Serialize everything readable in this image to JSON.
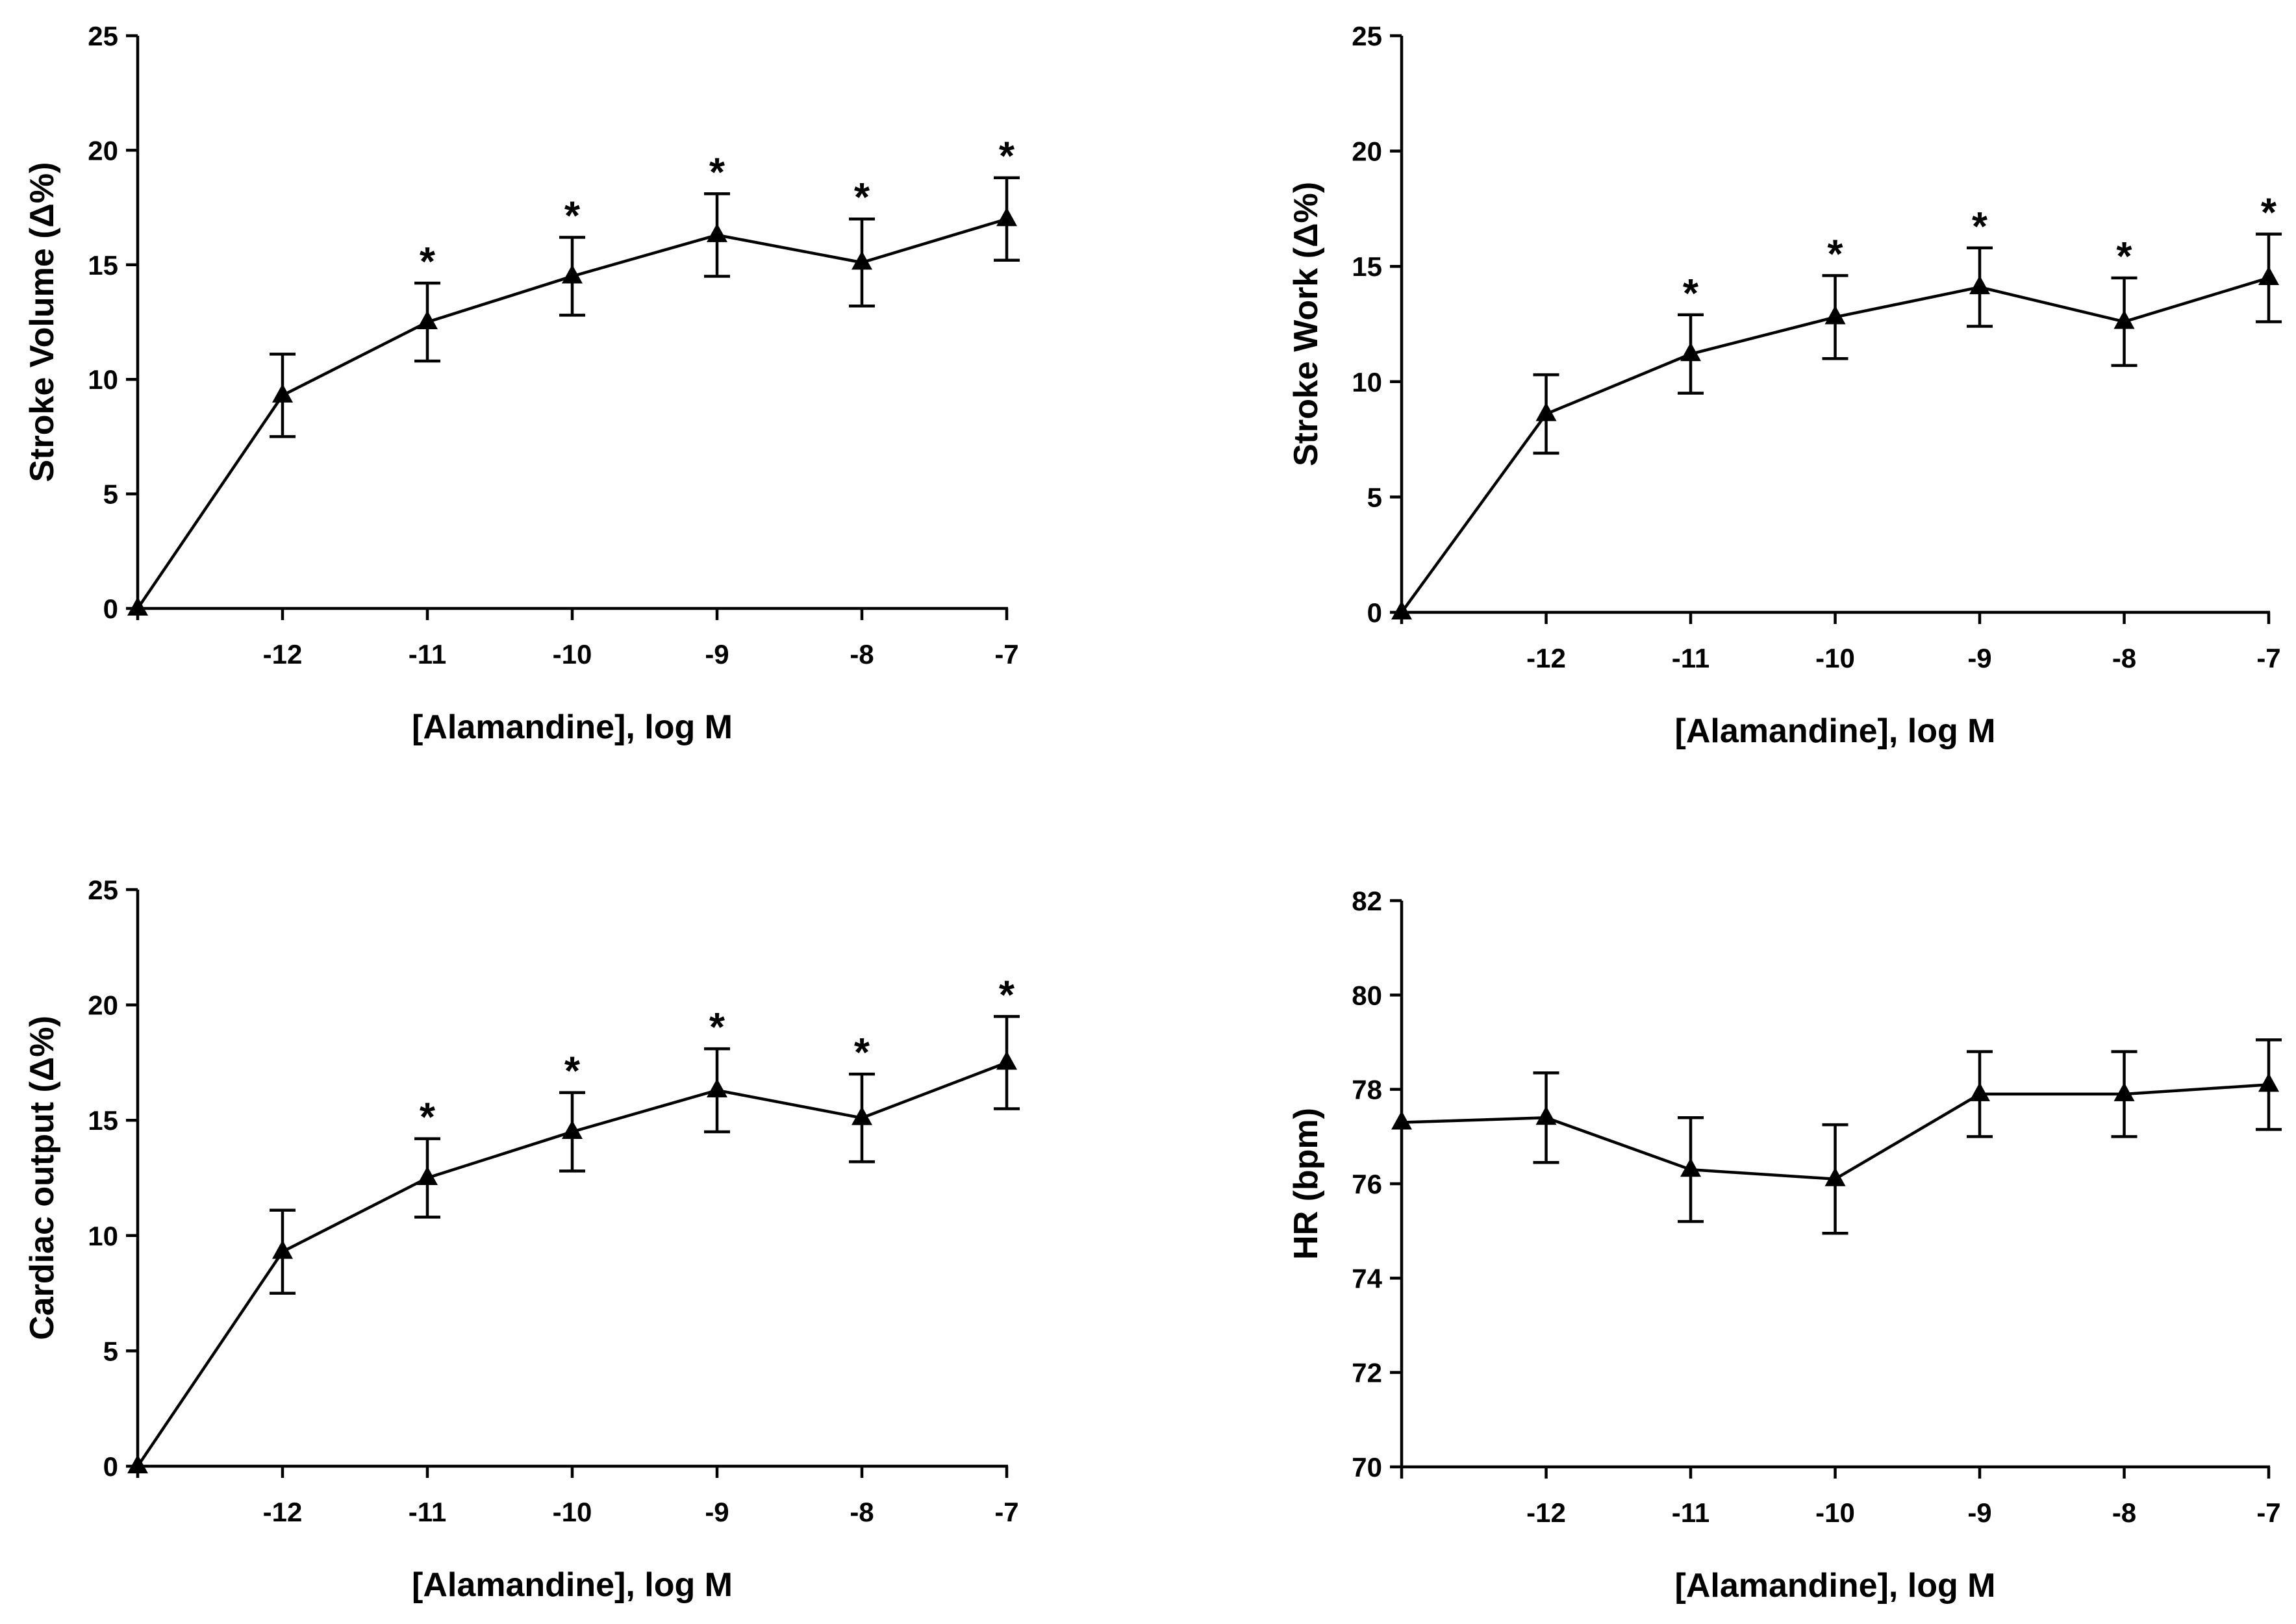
{
  "chart_data": [
    {
      "type": "line",
      "xlabel": "[Alamandine], log M",
      "ylabel": "Stroke Volume (Δ%)",
      "ylim": [
        0,
        25
      ],
      "yticks": [
        "0",
        "5",
        "10",
        "15",
        "20",
        "25"
      ],
      "categories": [
        "",
        "-12",
        "-11",
        "-10",
        "-9",
        "-8",
        "-7"
      ],
      "values": [
        0,
        9.3,
        12.5,
        14.5,
        16.3,
        15.1,
        17.0
      ],
      "errors": [
        0,
        1.8,
        1.7,
        1.7,
        1.8,
        1.9,
        1.8
      ],
      "significance": [
        "",
        "",
        "*",
        "*",
        "*",
        "*",
        "*"
      ]
    },
    {
      "type": "line",
      "xlabel": "[Alamandine], log M",
      "ylabel": "Stroke Work (Δ%)",
      "ylim": [
        0,
        25
      ],
      "yticks": [
        "0",
        "5",
        "10",
        "15",
        "20",
        "25"
      ],
      "categories": [
        "",
        "-12",
        "-11",
        "-10",
        "-9",
        "-8",
        "-7"
      ],
      "values": [
        0,
        8.6,
        11.2,
        12.8,
        14.1,
        12.6,
        14.5
      ],
      "errors": [
        0,
        1.7,
        1.7,
        1.8,
        1.7,
        1.9,
        1.9
      ],
      "significance": [
        "",
        "",
        "*",
        "*",
        "*",
        "*",
        "*"
      ]
    },
    {
      "type": "line",
      "xlabel": "[Alamandine], log M",
      "ylabel": "Cardiac output (Δ%)",
      "ylim": [
        0,
        25
      ],
      "yticks": [
        "0",
        "5",
        "10",
        "15",
        "20",
        "25"
      ],
      "categories": [
        "",
        "-12",
        "-11",
        "-10",
        "-9",
        "-8",
        "-7"
      ],
      "values": [
        0,
        9.3,
        12.5,
        14.5,
        16.3,
        15.1,
        17.5
      ],
      "errors": [
        0,
        1.8,
        1.7,
        1.7,
        1.8,
        1.9,
        2.0
      ],
      "significance": [
        "",
        "",
        "*",
        "*",
        "*",
        "*",
        "*"
      ]
    },
    {
      "type": "line",
      "xlabel": "[Alamandine], log M",
      "ylabel": "HR (bpm)",
      "ylim": [
        70,
        82
      ],
      "yticks": [
        "70",
        "72",
        "74",
        "76",
        "78",
        "80",
        "82"
      ],
      "categories": [
        "",
        "-12",
        "-11",
        "-10",
        "-9",
        "-8",
        "-7"
      ],
      "values": [
        77.3,
        77.4,
        76.3,
        76.1,
        77.9,
        77.9,
        78.1
      ],
      "errors": [
        0,
        0.95,
        1.1,
        1.15,
        0.9,
        0.9,
        0.95
      ],
      "significance": [
        "",
        "",
        "",
        "",
        "",
        "",
        ""
      ]
    }
  ]
}
